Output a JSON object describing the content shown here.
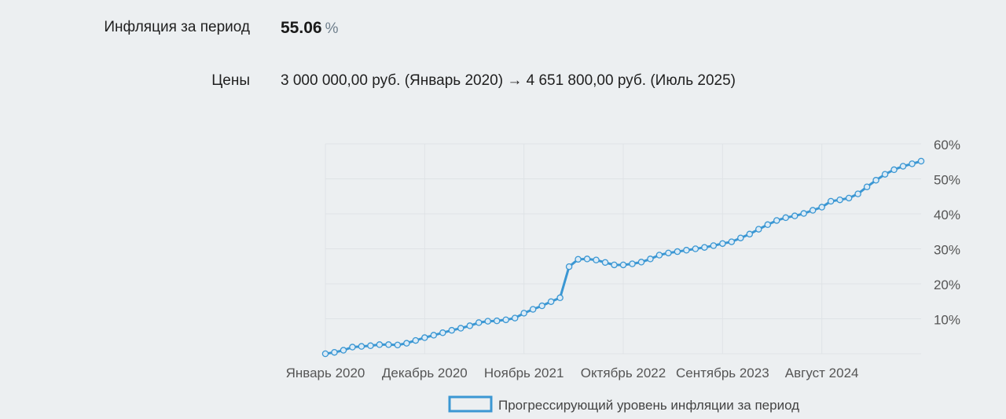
{
  "summary": {
    "inflation_label": "Инфляция за период",
    "inflation_value": "55.06",
    "inflation_unit": "%",
    "prices_label": "Цены",
    "prices_text": "3 000 000,00 руб. (Январь 2020) → 4 651 800,00 руб. (Июль 2025)"
  },
  "colors": {
    "line": "#3b97d3",
    "grid": "#dfe3e6",
    "tick_text": "#555555"
  },
  "chart_data": {
    "type": "line",
    "title": "",
    "xlabel": "",
    "ylabel": "",
    "ylim": [
      0,
      60
    ],
    "y_ticks": [
      "10%",
      "20%",
      "30%",
      "40%",
      "50%",
      "60%"
    ],
    "x_tick_labels": [
      "Январь 2020",
      "Декабрь 2020",
      "Ноябрь 2021",
      "Октябрь 2022",
      "Сентябрь 2023",
      "Август 2024"
    ],
    "x_tick_indices": [
      0,
      11,
      22,
      33,
      44,
      55
    ],
    "legend": {
      "position": "bottom",
      "label": "Прогрессирующий уровень инфляции за период"
    },
    "grid": true,
    "series": [
      {
        "name": "Прогрессирующий уровень инфляции за период",
        "values": [
          0,
          0.4,
          1.0,
          1.9,
          2.1,
          2.3,
          2.6,
          2.6,
          2.5,
          3.0,
          3.8,
          4.6,
          5.3,
          6.0,
          6.7,
          7.3,
          8.0,
          8.9,
          9.3,
          9.4,
          9.7,
          10.2,
          11.6,
          12.7,
          13.7,
          14.9,
          16.0,
          24.9,
          27.0,
          27.1,
          26.8,
          26.1,
          25.4,
          25.4,
          25.7,
          26.2,
          27.1,
          28.2,
          28.8,
          29.2,
          29.6,
          30.0,
          30.4,
          30.9,
          31.5,
          32.0,
          33.1,
          34.2,
          35.6,
          36.9,
          38.1,
          38.9,
          39.4,
          40.1,
          41.0,
          41.9,
          43.6,
          44.0,
          44.5,
          45.7,
          47.7,
          49.6,
          51.3,
          52.6,
          53.6,
          54.3,
          55.06
        ]
      }
    ]
  }
}
